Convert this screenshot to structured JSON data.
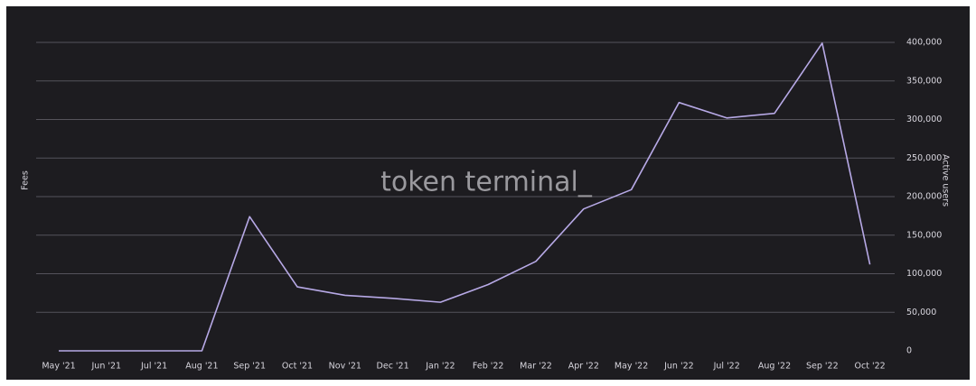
{
  "chart_data": {
    "type": "line",
    "y_label": "Fees",
    "y2_label": "Active users",
    "watermark": "token terminal_",
    "categories": [
      "May '21",
      "Jun '21",
      "Jul '21",
      "Aug '21",
      "Sep '21",
      "Oct '21",
      "Nov '21",
      "Dec '21",
      "Jan '22",
      "Feb '22",
      "Mar '22",
      "Apr '22",
      "May '22",
      "Jun '22",
      "Jul '22",
      "Aug '22",
      "Sep '22",
      "Oct '22"
    ],
    "series": [
      {
        "name": "Active users",
        "color": "#b7a9e6",
        "axis": "y2",
        "values": [
          0,
          0,
          0,
          0,
          174000,
          83000,
          72000,
          68000,
          63000,
          86000,
          116000,
          184000,
          209000,
          322000,
          302000,
          308000,
          399000,
          112000
        ]
      }
    ],
    "y2lim": [
      0,
      400000
    ],
    "y2ticks": [
      0,
      {
        "value": 50000,
        "label": "50,000"
      },
      {
        "value": 100000,
        "label": "100,000"
      },
      {
        "value": 150000,
        "label": "150,000"
      },
      {
        "value": 200000,
        "label": "200,000"
      },
      {
        "value": 250000,
        "label": "250,000"
      },
      {
        "value": 300000,
        "label": "300,000"
      },
      {
        "value": 350000,
        "label": "350,000"
      },
      {
        "value": 400000,
        "label": "400,000"
      }
    ],
    "grid": true
  }
}
